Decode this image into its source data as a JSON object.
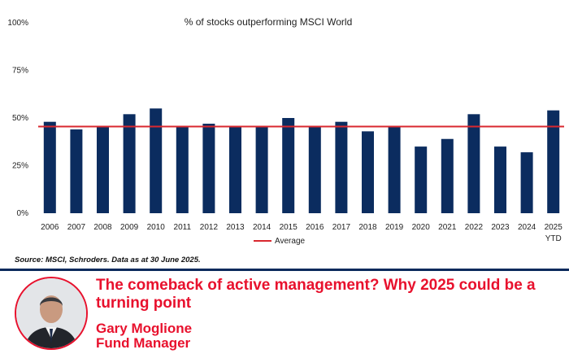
{
  "chart_data": {
    "type": "bar",
    "title": "% of stocks outperforming MSCI World",
    "categories": [
      "2006",
      "2007",
      "2008",
      "2009",
      "2010",
      "2011",
      "2012",
      "2013",
      "2014",
      "2015",
      "2016",
      "2017",
      "2018",
      "2019",
      "2020",
      "2021",
      "2022",
      "2023",
      "2024",
      "2025"
    ],
    "category_sublabels": {
      "2025": "YTD"
    },
    "values": [
      48,
      44,
      45.5,
      52,
      55,
      45.5,
      47,
      45.8,
      45.5,
      50,
      45.8,
      48,
      43,
      45.5,
      35,
      39,
      52,
      35,
      32,
      54
    ],
    "average": 45.5,
    "yticks": [
      "0%",
      "25%",
      "50%",
      "75%",
      "100%"
    ],
    "ylim": [
      0,
      100
    ],
    "legend": {
      "label": "Average",
      "position": "bottom"
    },
    "bar_color": "#0b2c5f",
    "average_color": "#d9282f",
    "grid": false
  },
  "source": "Source: MSCI, Schroders. Data  as at 30 June 2025.",
  "article": {
    "headline": "The comeback of active management? Why 2025 could be a turning point",
    "author_name": "Gary Moglione",
    "author_role": "Fund Manager",
    "accent_color": "#e8112d"
  }
}
